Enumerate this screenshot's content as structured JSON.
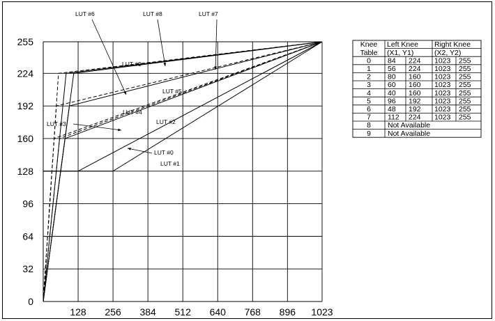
{
  "chart_data": {
    "type": "line",
    "xlim": [
      0,
      1023
    ],
    "ylim": [
      0,
      255
    ],
    "x_ticks": [
      "128",
      "256",
      "384",
      "512",
      "640",
      "768",
      "896",
      "1023"
    ],
    "x_tick_values": [
      128,
      256,
      384,
      512,
      640,
      768,
      896,
      1023
    ],
    "y_ticks": [
      "0",
      "32",
      "64",
      "96",
      "128",
      "160",
      "192",
      "224",
      "255"
    ],
    "y_tick_values": [
      0,
      32,
      64,
      96,
      128,
      160,
      192,
      224,
      255
    ],
    "grid": true,
    "series": [
      {
        "name": "LUT #0",
        "style": "solid",
        "points": [
          [
            0,
            0
          ],
          [
            84,
            224
          ],
          [
            1023,
            255
          ]
        ]
      },
      {
        "name": "LUT #1",
        "style": "dashed",
        "points": [
          [
            0,
            0
          ],
          [
            56,
            224
          ],
          [
            1023,
            255
          ]
        ]
      },
      {
        "name": "LUT #2",
        "style": "solid",
        "points": [
          [
            0,
            0
          ],
          [
            80,
            160
          ],
          [
            1023,
            255
          ]
        ]
      },
      {
        "name": "LUT #3",
        "style": "dashed",
        "points": [
          [
            0,
            0
          ],
          [
            60,
            160
          ],
          [
            1023,
            255
          ]
        ]
      },
      {
        "name": "LUT #4",
        "style": "dashed",
        "points": [
          [
            0,
            0
          ],
          [
            40,
            160
          ],
          [
            1023,
            255
          ]
        ]
      },
      {
        "name": "LUT #5",
        "style": "solid",
        "points": [
          [
            0,
            0
          ],
          [
            96,
            192
          ],
          [
            1023,
            255
          ]
        ]
      },
      {
        "name": "LUT #6",
        "style": "dashed",
        "points": [
          [
            0,
            0
          ],
          [
            48,
            192
          ],
          [
            1023,
            255
          ]
        ]
      },
      {
        "name": "LUT #7",
        "style": "solid",
        "points": [
          [
            0,
            0
          ],
          [
            112,
            224
          ],
          [
            1023,
            255
          ]
        ]
      },
      {
        "name": "LUT #8",
        "style": "solid",
        "points": [
          [
            0,
            128
          ],
          [
            256,
            128
          ],
          [
            1023,
            255
          ]
        ]
      },
      {
        "name": "LUT #9",
        "style": "solid",
        "points": [
          [
            0,
            128
          ],
          [
            128,
            128
          ],
          [
            1023,
            255
          ]
        ]
      }
    ],
    "annotations": [
      {
        "text": "LUT #6",
        "kind": "label"
      },
      {
        "text": "LUT #8",
        "kind": "label"
      },
      {
        "text": "LUT #7",
        "kind": "label"
      },
      {
        "text": "LUT #9",
        "kind": "label"
      },
      {
        "text": "LUT #5",
        "kind": "label"
      },
      {
        "text": "LUT #4",
        "kind": "label"
      },
      {
        "text": "LUT #3",
        "kind": "label"
      },
      {
        "text": "LUT #2",
        "kind": "label"
      },
      {
        "text": "LUT #0",
        "kind": "label"
      },
      {
        "text": "LUT #1",
        "kind": "label"
      }
    ],
    "table": {
      "header_row1": [
        "Knee",
        "Left Knee",
        "Right Knee"
      ],
      "header_row2": [
        "Table",
        "(X1,  Y1)",
        "(X2,   Y2)"
      ],
      "rows": [
        {
          "table": "0",
          "x1": "84",
          "y1": "224",
          "x2": "1023",
          "y2": "255"
        },
        {
          "table": "1",
          "x1": "56",
          "y1": "224",
          "x2": "1023",
          "y2": "255"
        },
        {
          "table": "2",
          "x1": "80",
          "y1": "160",
          "x2": "1023",
          "y2": "255"
        },
        {
          "table": "3",
          "x1": "60",
          "y1": "160",
          "x2": "1023",
          "y2": "255"
        },
        {
          "table": "4",
          "x1": "40",
          "y1": "160",
          "x2": "1023",
          "y2": "255"
        },
        {
          "table": "5",
          "x1": "96",
          "y1": "192",
          "x2": "1023",
          "y2": "255"
        },
        {
          "table": "6",
          "x1": "48",
          "y1": "192",
          "x2": "1023",
          "y2": "255"
        },
        {
          "table": "7",
          "x1": "112",
          "y1": "224",
          "x2": "1023",
          "y2": "255"
        }
      ],
      "unavailable_rows": [
        {
          "table": "8",
          "text": "Not Available"
        },
        {
          "table": "9",
          "text": "Not Available"
        }
      ]
    }
  }
}
